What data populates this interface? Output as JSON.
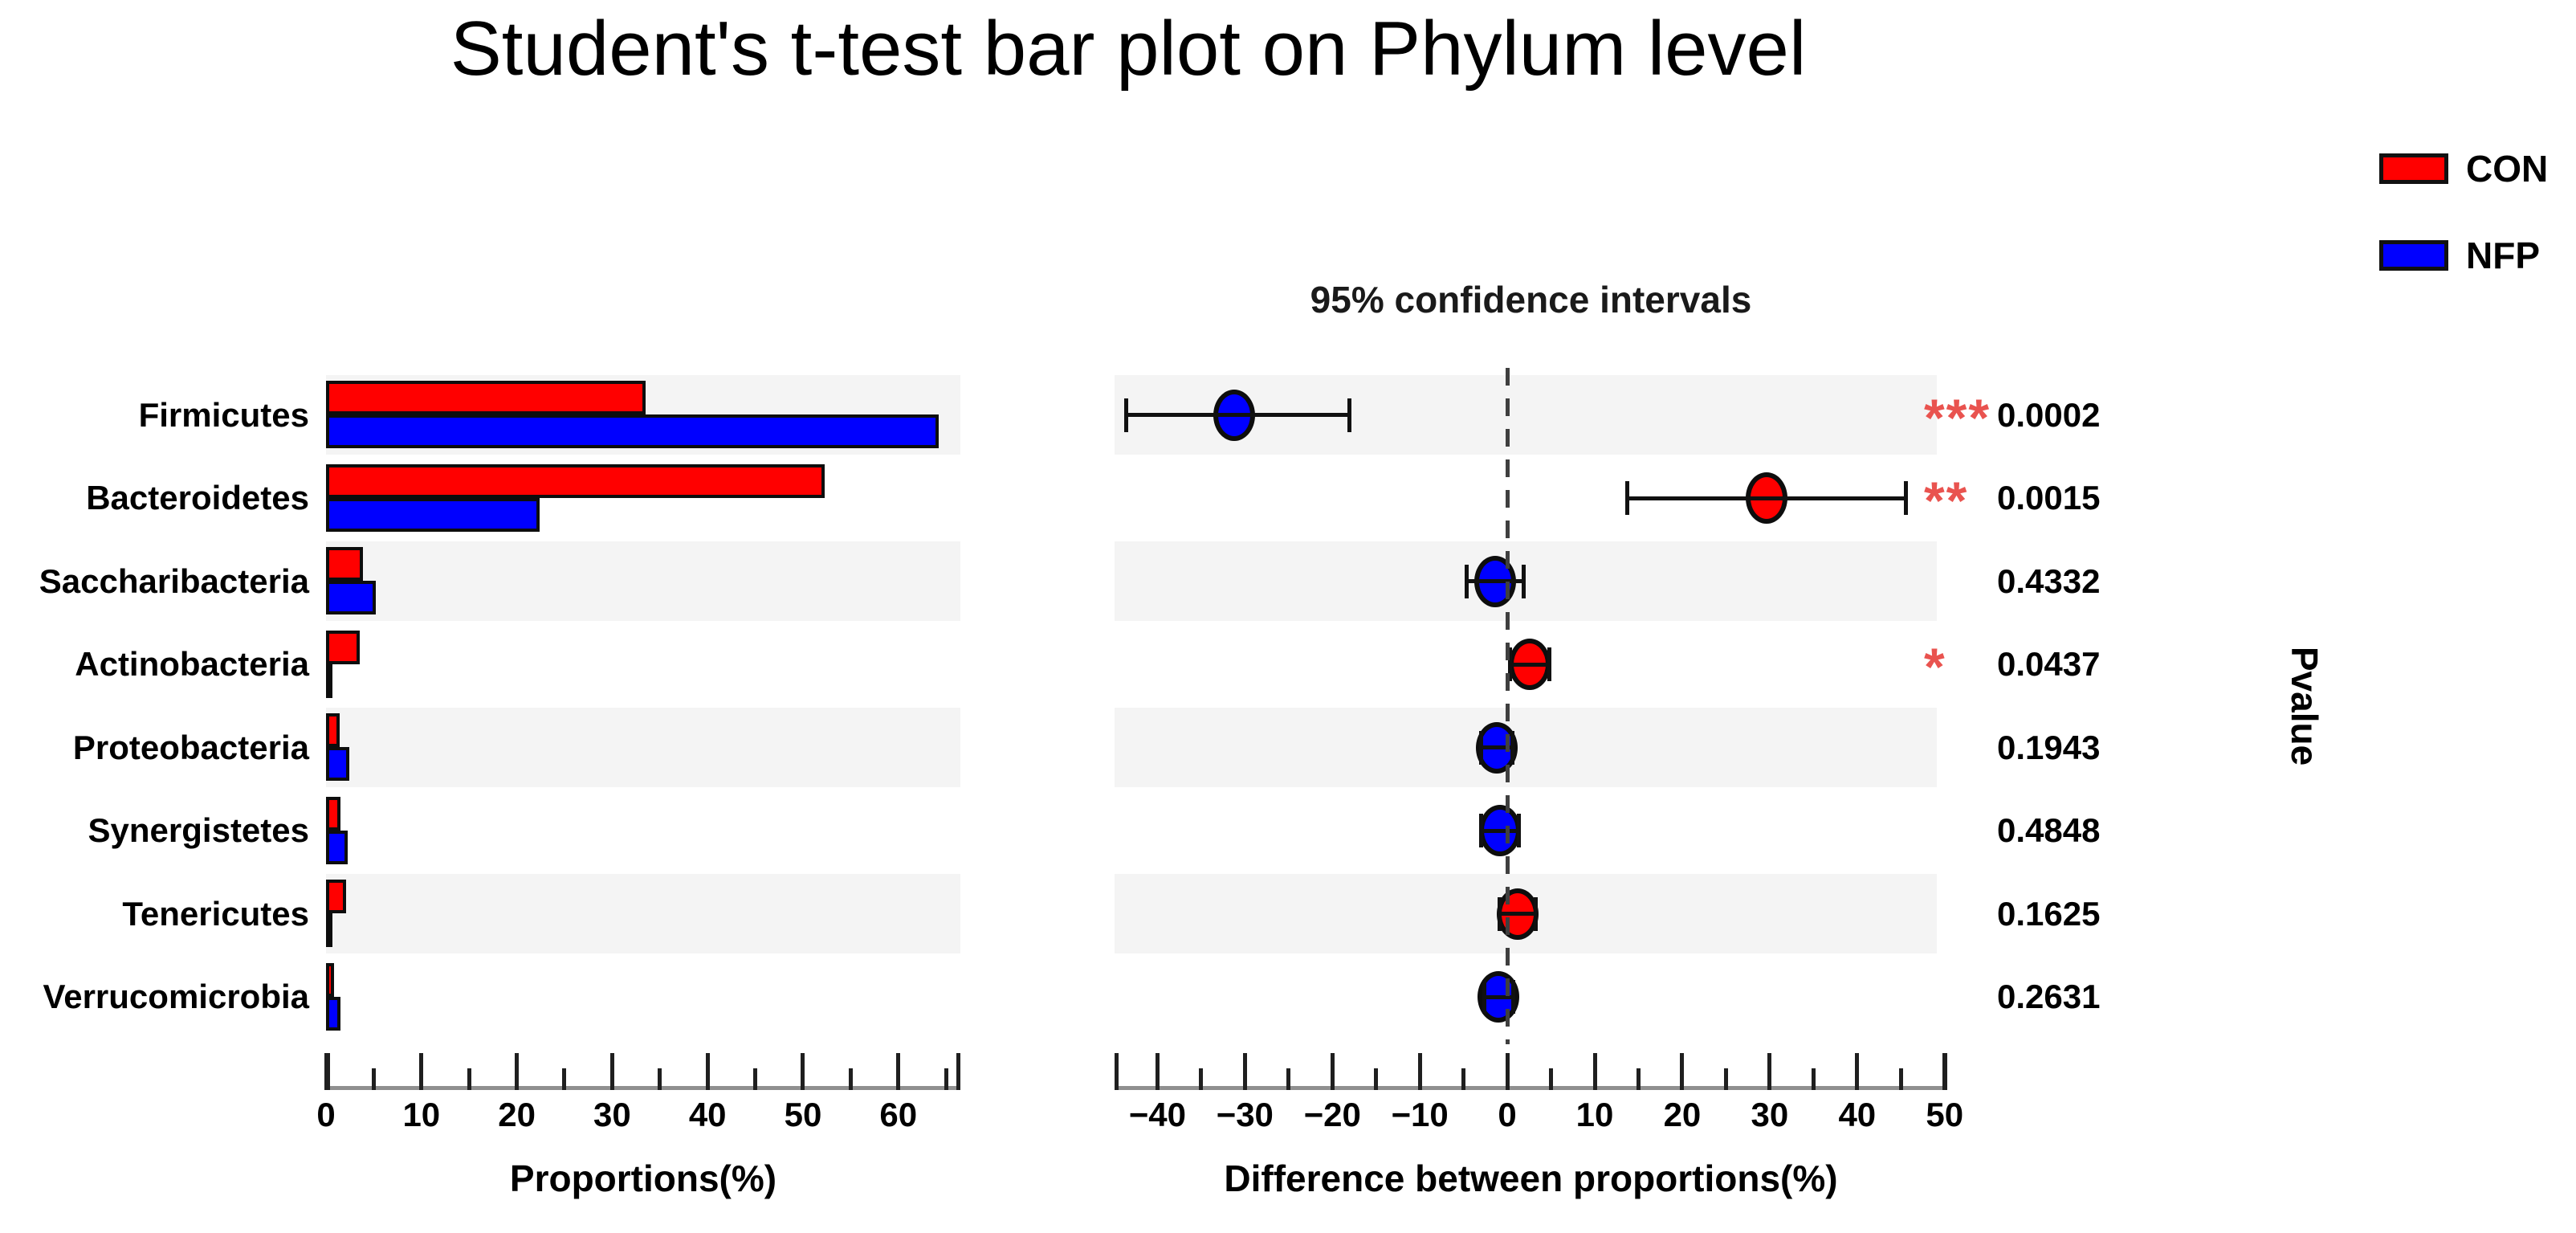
{
  "title": "Student's t-test bar plot on Phylum level",
  "legend": {
    "items": [
      {
        "label": "CON",
        "color": "#ff0000"
      },
      {
        "label": "NFP",
        "color": "#0000ff"
      }
    ]
  },
  "chart_data": {
    "type": "bar",
    "subtype": "grouped-horizontal-bars-with-extended-error-bars",
    "title": "Student's t-test bar plot on Phylum level",
    "right_title": "95% confidence intervals",
    "pvalue_axis_label": "Pvalue",
    "categories": [
      "Firmicutes",
      "Bacteroidetes",
      "Saccharibacteria",
      "Actinobacteria",
      "Proteobacteria",
      "Synergistetes",
      "Tenericutes",
      "Verrucomicrobia"
    ],
    "series": [
      {
        "name": "CON",
        "color": "#ff0000",
        "values": [
          33.5,
          52.3,
          3.9,
          3.5,
          1.4,
          1.5,
          2.1,
          0.8
        ]
      },
      {
        "name": "NFP",
        "color": "#0000ff",
        "values": [
          64.2,
          22.4,
          5.2,
          0.4,
          2.4,
          2.3,
          0.2,
          1.5
        ]
      }
    ],
    "difference": {
      "values": [
        -31.2,
        29.6,
        -1.4,
        2.6,
        -1.2,
        -0.8,
        1.2,
        -1.0
      ],
      "ci_low": [
        -43.6,
        13.7,
        -4.7,
        0.3,
        -3.0,
        -3.0,
        -0.9,
        -2.7
      ],
      "ci_high": [
        -18.0,
        45.6,
        1.9,
        4.9,
        0.6,
        1.4,
        3.3,
        0.7
      ],
      "dot_colors": [
        "#0000ff",
        "#ff0000",
        "#0000ff",
        "#ff0000",
        "#0000ff",
        "#0000ff",
        "#ff0000",
        "#0000ff"
      ]
    },
    "pvalues": [
      "0.0002",
      "0.0015",
      "0.4332",
      "0.0437",
      "0.1943",
      "0.4848",
      "0.1625",
      "0.2631"
    ],
    "significance": [
      "***",
      "**",
      "",
      "*",
      "",
      "",
      "",
      ""
    ],
    "significance_color": "#e9534f",
    "left_axis": {
      "label": "Proportions(%)",
      "ticks": [
        0,
        10,
        20,
        30,
        40,
        50,
        60
      ],
      "range": [
        0,
        66.5
      ],
      "minor_step": 5
    },
    "right_axis": {
      "label": "Difference between proportions(%)",
      "ticks": [
        -40,
        -30,
        -20,
        -10,
        0,
        10,
        20,
        30,
        40,
        50
      ],
      "range": [
        -44.9,
        50.3
      ],
      "minor_step": 5
    },
    "row_shading": "alternate",
    "legend_position": "top-right"
  }
}
